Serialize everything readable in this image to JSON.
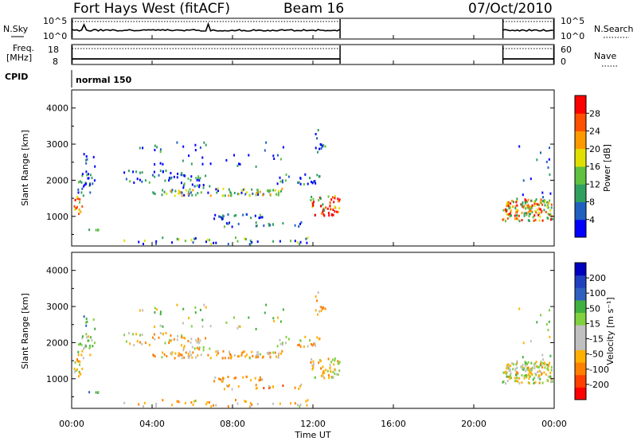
{
  "header": {
    "station": "Fort Hays West (fitACF)",
    "beam": "Beam 16",
    "date": "07/Oct/2010"
  },
  "strip_labels": {
    "nsky": "N.Sky",
    "nsearch": "N.Search",
    "freq_line1": "Freq.",
    "freq_line2": "[MHz]",
    "nave": "Nave",
    "cpid": "CPID",
    "cpid_value": "normal 150"
  },
  "strip_ticks": {
    "nsky_top": "10^5",
    "nsky_bottom": "10^0",
    "nsearch_top": "10^5",
    "nsearch_bottom": "10^0",
    "freq_top": "18",
    "freq_bottom": "8",
    "nave_top": "60",
    "nave_bottom": "0"
  },
  "colors": {
    "power_scale": [
      "#0000ff",
      "#2060c0",
      "#30a060",
      "#60c040",
      "#e0e000",
      "#ff9900",
      "#ff5000",
      "#ff0000"
    ],
    "velocity_scale": [
      "#ff0000",
      "#ff4000",
      "#ff8000",
      "#ffb000",
      "#c0c0c0",
      "#c0c0c0",
      "#80d040",
      "#40b040",
      "#3060c0",
      "#2040c0",
      "#0000c0"
    ]
  },
  "chart_data": [
    {
      "type": "heatmap",
      "name": "power",
      "ylabel": "Slant Range [km]",
      "ylim": [
        180,
        4500
      ],
      "yticks": [
        1000,
        2000,
        3000,
        4000
      ],
      "xlim_hours": [
        0,
        24
      ],
      "xticks": [
        "00:00",
        "04:00",
        "08:00",
        "12:00",
        "16:00",
        "20:00",
        "00:00"
      ],
      "colorbar_label": "Power [dB]",
      "colorbar_ticks": [
        "4",
        "8",
        "12",
        "16",
        "20",
        "24",
        "28"
      ],
      "colorbar_range": [
        0,
        32
      ]
    },
    {
      "type": "heatmap",
      "name": "velocity",
      "ylabel": "Slant Range [km]",
      "ylim": [
        180,
        4500
      ],
      "yticks": [
        1000,
        2000,
        3000,
        4000
      ],
      "xlim_hours": [
        0,
        24
      ],
      "xticks": [
        "00:00",
        "04:00",
        "08:00",
        "12:00",
        "16:00",
        "20:00",
        "00:00"
      ],
      "xlabel": "Time UT",
      "colorbar_label": "Velocity [m s⁻¹]",
      "colorbar_ticks": [
        "-200",
        "-100",
        "-50",
        "-15",
        "15",
        "50",
        "100",
        "200"
      ]
    }
  ]
}
